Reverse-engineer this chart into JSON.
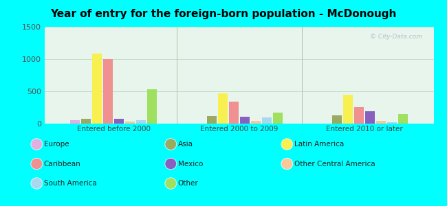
{
  "title": "Year of entry for the foreign-born population - McDonough",
  "categories": [
    "Entered before 2000",
    "Entered 2000 to 2009",
    "Entered 2010 or later"
  ],
  "series": {
    "Europe": [
      50,
      0,
      0
    ],
    "Asia": [
      70,
      120,
      130
    ],
    "Latin America": [
      1090,
      470,
      450
    ],
    "Caribbean": [
      1000,
      340,
      260
    ],
    "Mexico": [
      70,
      110,
      190
    ],
    "Other Central America": [
      30,
      40,
      40
    ],
    "South America": [
      55,
      95,
      25
    ],
    "Other": [
      530,
      165,
      150
    ]
  },
  "colors": {
    "Europe": "#e0b0e0",
    "Asia": "#9aaa60",
    "Latin America": "#f8f050",
    "Caribbean": "#f09090",
    "Mexico": "#8860c0",
    "Other Central America": "#f8c898",
    "South America": "#a8d8f0",
    "Other": "#a0e060"
  },
  "bar_order": [
    "Europe",
    "Asia",
    "Latin America",
    "Caribbean",
    "Mexico",
    "Other Central America",
    "South America",
    "Other"
  ],
  "legend_col1": [
    "Europe",
    "Caribbean",
    "South America"
  ],
  "legend_col2": [
    "Asia",
    "Mexico",
    "Other"
  ],
  "legend_col3": [
    "Latin America",
    "Other Central America"
  ],
  "ylim": [
    0,
    1500
  ],
  "yticks": [
    0,
    500,
    1000,
    1500
  ],
  "outer_bg": "#00ffff",
  "plot_bg": "#e8f5ec"
}
